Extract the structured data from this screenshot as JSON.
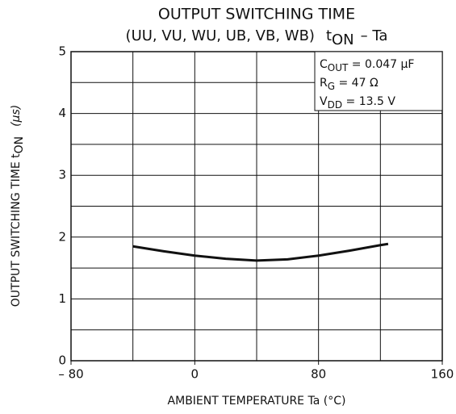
{
  "chart_data": {
    "type": "line",
    "title": "OUTPUT SWITCHING TIME",
    "subtitle": {
      "prefix": "(UU, VU, WU, UB, VB, WB)",
      "t": "t",
      "sub": "ON",
      "suffix": "– Ta"
    },
    "x_label": "AMBIENT TEMPERATURE   Ta   (°C)",
    "y_label": {
      "prefix": "OUTPUT SWITCHING TIME   t",
      "sub": "ON",
      "suffix": "(μs)"
    },
    "annotations": [
      {
        "main": "C",
        "sub": "OUT",
        "rest": " = 0.047 μF"
      },
      {
        "main": "R",
        "sub": "G",
        "rest": " = 47 Ω"
      },
      {
        "main": "V",
        "sub": "DD",
        "rest": " = 13.5 V"
      }
    ],
    "xlim": [
      -80,
      160
    ],
    "ylim": [
      0,
      5
    ],
    "xticks": [
      {
        "value": -80,
        "label": "– 80"
      },
      0,
      80,
      160
    ],
    "yticks": [
      0,
      1,
      2,
      3,
      4,
      5
    ],
    "xgrid": [
      -80,
      -40,
      0,
      40,
      80,
      120,
      160
    ],
    "ygrid": [
      0,
      0.5,
      1,
      1.5,
      2,
      2.5,
      3,
      3.5,
      4,
      4.5,
      5
    ],
    "grid": true,
    "series": [
      {
        "color": "#111111",
        "x": [
          -40,
          -20,
          0,
          20,
          40,
          60,
          80,
          100,
          120,
          125
        ],
        "values": [
          1.85,
          1.77,
          1.7,
          1.65,
          1.62,
          1.64,
          1.7,
          1.78,
          1.87,
          1.89
        ]
      }
    ]
  }
}
